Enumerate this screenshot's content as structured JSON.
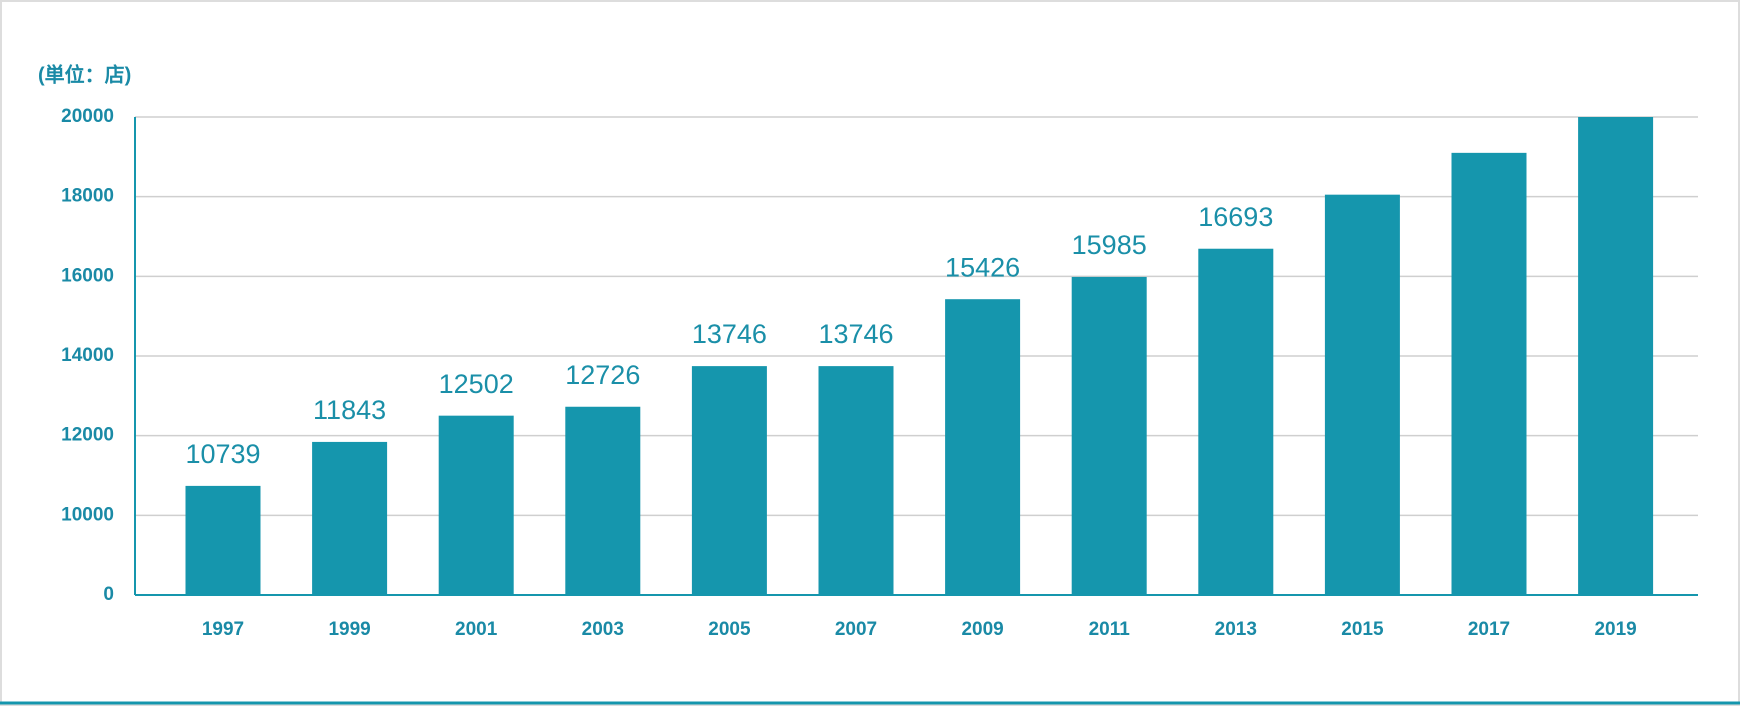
{
  "chart_data": {
    "type": "bar",
    "unit_label": "(単位：店)",
    "categories": [
      "1997",
      "1999",
      "2001",
      "2003",
      "2005",
      "2007",
      "2009",
      "2011",
      "2013",
      "2015",
      "2017",
      "2019"
    ],
    "values": [
      10739,
      11843,
      12502,
      12726,
      13746,
      13746,
      15426,
      15985,
      16693,
      18050,
      19100,
      20000
    ],
    "value_labels": [
      "10739",
      "11843",
      "12502",
      "12726",
      "13746",
      "13746",
      "15426",
      "15985",
      "16693",
      null,
      null,
      null
    ],
    "color": "#1596ad",
    "ylim": [
      0,
      20000
    ],
    "yticks": [
      0,
      10000,
      12000,
      14000,
      16000,
      18000,
      20000
    ],
    "axis_break": true,
    "grid": true
  }
}
